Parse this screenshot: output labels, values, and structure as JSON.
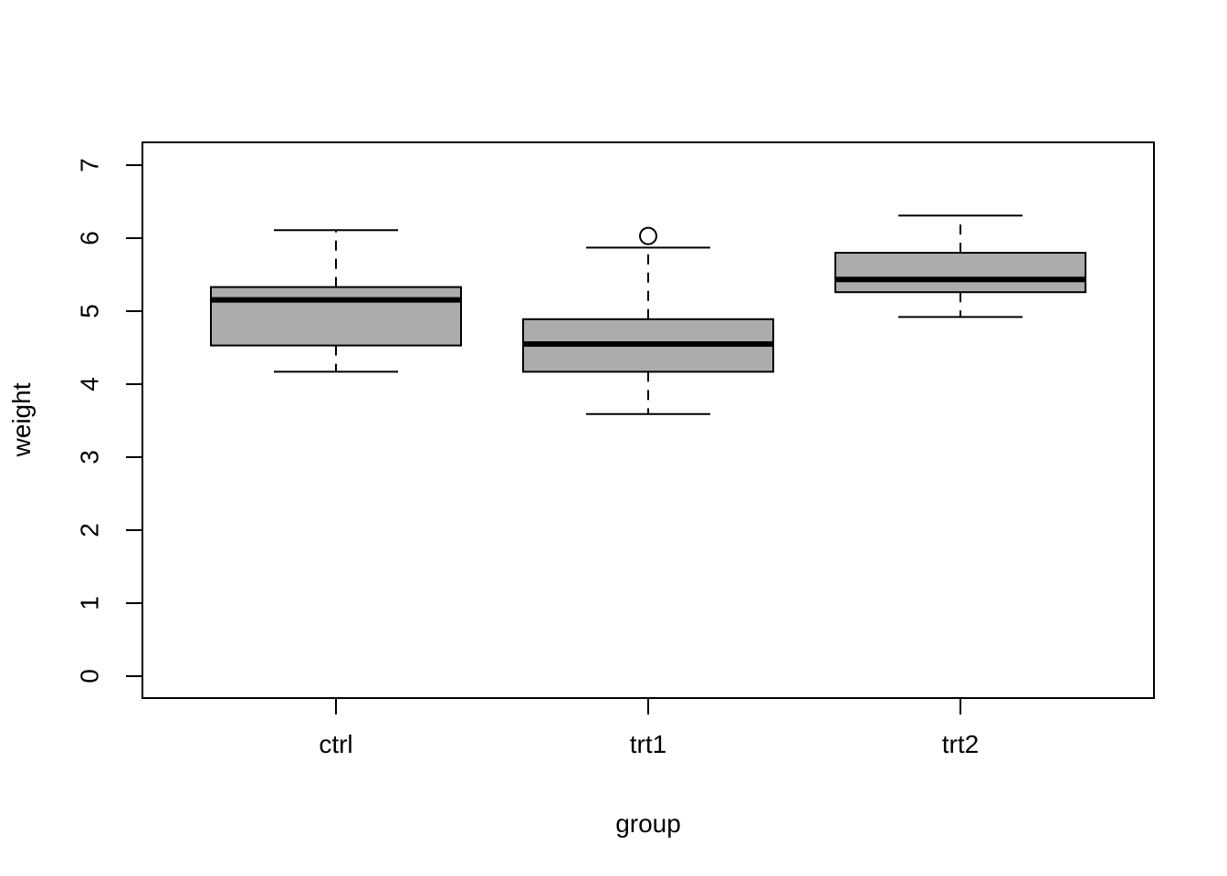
{
  "figure": {
    "background": "#ffffff"
  },
  "chart_data": {
    "type": "boxplot",
    "title": "",
    "xlabel": "group",
    "ylabel": "weight",
    "categories": [
      "ctrl",
      "trt1",
      "trt2"
    ],
    "y_ticks": [
      0,
      1,
      2,
      3,
      4,
      5,
      6,
      7
    ],
    "ylim": [
      0,
      7
    ],
    "grid": false,
    "legend": "none",
    "box_fill": "#acacac",
    "line_color": "#000000",
    "series": [
      {
        "name": "ctrl",
        "whisker_low": 4.17,
        "q1": 4.53,
        "median": 5.155,
        "q3": 5.33,
        "whisker_high": 6.11,
        "outliers": []
      },
      {
        "name": "trt1",
        "whisker_low": 3.59,
        "q1": 4.17,
        "median": 4.55,
        "q3": 4.89,
        "whisker_high": 5.87,
        "outliers": [
          6.03
        ]
      },
      {
        "name": "trt2",
        "whisker_low": 4.92,
        "q1": 5.26,
        "median": 5.435,
        "q3": 5.8,
        "whisker_high": 6.31,
        "outliers": []
      }
    ]
  }
}
